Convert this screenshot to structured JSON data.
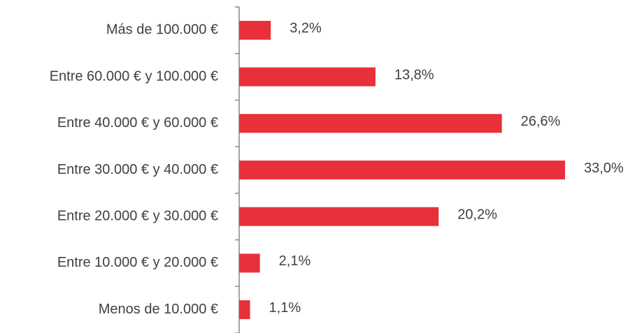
{
  "chart_data": {
    "type": "bar",
    "orientation": "horizontal",
    "color": "#e8303a",
    "categories": [
      "Más de 100.000 €",
      "Entre 60.000 € y 100.000 €",
      "Entre 40.000 € y 60.000 €",
      "Entre 30.000 € y 40.000 €",
      "Entre 20.000 € y 30.000 €",
      "Entre 10.000 € y 20.000 €",
      "Menos de 10.000 €"
    ],
    "values": [
      3.2,
      13.8,
      26.6,
      33.0,
      20.2,
      2.1,
      1.1
    ],
    "value_labels": [
      "3,2%",
      "13,8%",
      "26,6%",
      "33,0%",
      "20,2%",
      "2,1%",
      "1,1%"
    ]
  }
}
